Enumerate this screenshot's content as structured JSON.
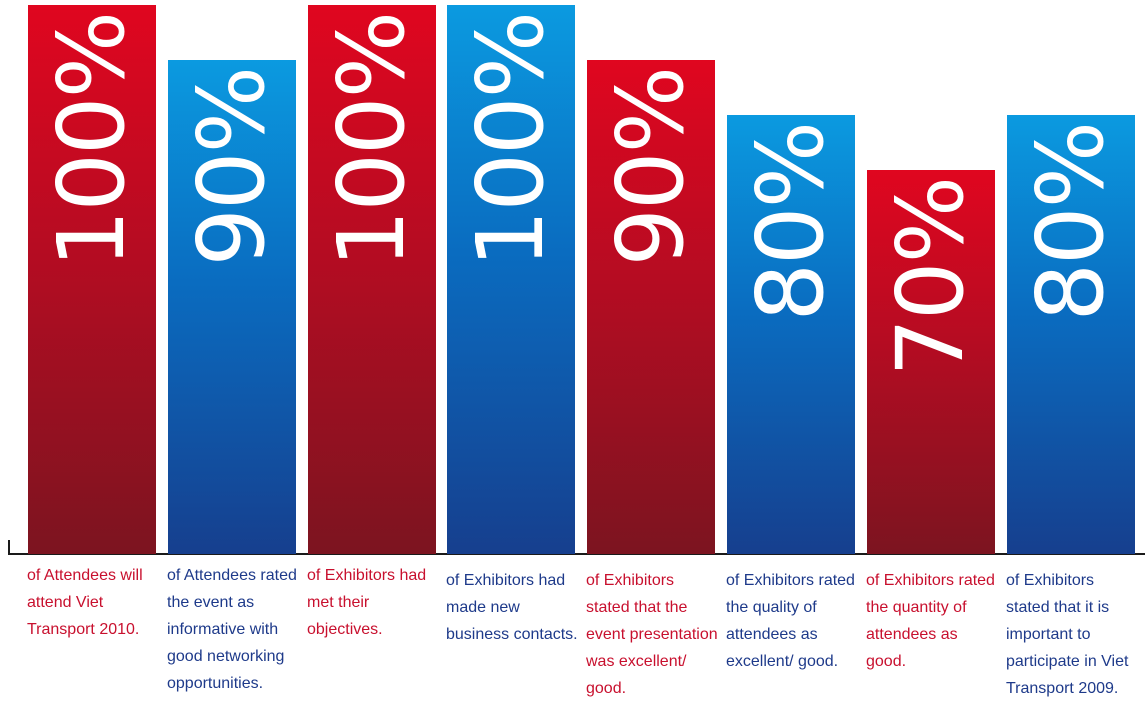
{
  "chart_data": {
    "type": "bar",
    "ylim": [
      0,
      100
    ],
    "colors": {
      "red": "#c8102e",
      "blue": "#0a6cc0"
    },
    "bars": [
      {
        "value": 100,
        "label": "100%",
        "caption": "of Attendees will attend Viet Transport 2010.",
        "color": "red"
      },
      {
        "value": 90,
        "label": "90%",
        "caption": "of Attendees rated the event as informative with good networking opportunities.",
        "color": "blue"
      },
      {
        "value": 100,
        "label": "100%",
        "caption": "of Exhibitors had met their objectives.",
        "color": "red"
      },
      {
        "value": 100,
        "label": "100%",
        "caption": "of Exhibitors had made new business contacts.",
        "color": "blue"
      },
      {
        "value": 90,
        "label": "90%",
        "caption": "of Exhibitors stated that the event presentation was excellent/ good.",
        "color": "red"
      },
      {
        "value": 80,
        "label": "80%",
        "caption": "of Exhibitors rated the quality of attendees as excellent/ good.",
        "color": "blue"
      },
      {
        "value": 70,
        "label": "70%",
        "caption": "of Exhibitors rated the quantity of attendees as good.",
        "color": "red"
      },
      {
        "value": 80,
        "label": "80%",
        "caption": "of Exhibitors stated that it is important to participate in Viet Transport 2009.",
        "color": "blue"
      }
    ]
  }
}
